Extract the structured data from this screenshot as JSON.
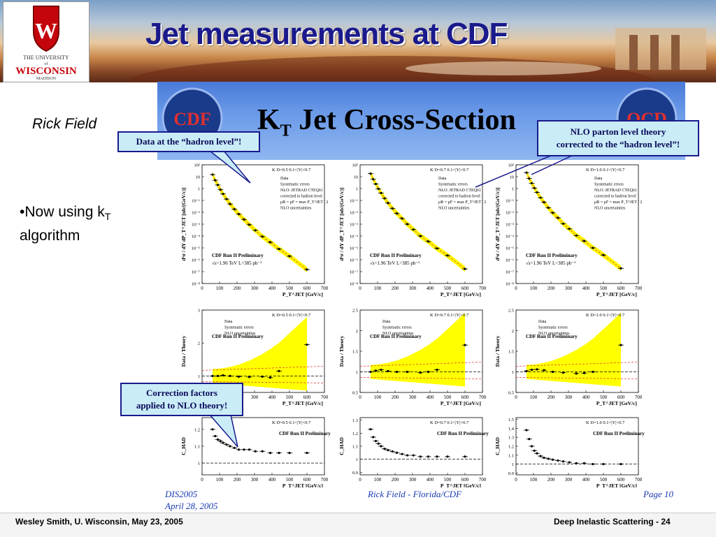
{
  "header": {
    "title": "Jet measurements at CDF",
    "logo_line1": "THE UNIVERSITY",
    "logo_line2": "of",
    "logo_line3": "WISCONSIN",
    "logo_line4": "MADISON"
  },
  "sidebar": {
    "author": "Rick Field",
    "bullet_line1": "•Now using k",
    "bullet_sub": "T",
    "bullet_line2": "algorithm"
  },
  "banner": {
    "title_prefix": "K",
    "title_sub": "T",
    "title_rest": " Jet Cross-Section",
    "logo_left": "CDF",
    "logo_right": "QCD"
  },
  "callouts": {
    "hadron": "Data at the “hadron level”!",
    "nlo_line1": "NLO parton level theory",
    "nlo_line2": "corrected to the “hadron level”!",
    "corr_line1": "Correction factors",
    "corr_line2": "applied to NLO theory!"
  },
  "footer": {
    "dis": "DIS2005",
    "date": "April 28, 2005",
    "center": "Rick Field - Florida/CDF",
    "page": "Page 10",
    "bottom_left": "Wesley Smith, U. Wisconsin, May 23, 2005",
    "bottom_right": "Deep Inelastic Scattering  -  24"
  },
  "colors": {
    "title_blue": "#1a1a8c",
    "callout_bg": "#c9ecf6",
    "syst_band": "#ffff00",
    "nlo_red": "#e03030"
  },
  "chart_data": [
    {
      "type": "scatter",
      "title": "K  D=0.5  0.1<|Y|<0.7",
      "legend": [
        "Data",
        "Systematic errors",
        "NLO: JETRAD CTEQ61",
        "corrected to hadron level",
        "μR = μF = max P_T^JET / 2",
        "NLO uncertainties"
      ],
      "annotations": [
        "CDF Run II Preliminary",
        "√s=1.96 TeV  L=385 pb⁻¹"
      ],
      "xlabel": "P_T^JET [GeV/c]",
      "ylabel": "d²σ / dY dP_T^JET [nb/(GeV/c)]",
      "x_ticks": [
        "0",
        "100",
        "200",
        "300",
        "400",
        "500",
        "600",
        "700"
      ],
      "y_ticks": [
        "10⁻⁸",
        "10⁻⁷",
        "10⁻⁶",
        "10⁻⁵",
        "10⁻⁴",
        "10⁻³",
        "10⁻²",
        "10⁻¹",
        "1",
        "10",
        "10²"
      ],
      "xlim": [
        0,
        700
      ],
      "ylim_log10": [
        -8,
        2
      ],
      "scale": "log",
      "x": [
        60,
        75,
        90,
        105,
        120,
        140,
        160,
        185,
        210,
        240,
        270,
        305,
        345,
        390,
        440,
        500,
        600
      ],
      "y": [
        15,
        5,
        2,
        0.8,
        0.35,
        0.13,
        0.05,
        0.018,
        0.007,
        0.0025,
        0.0009,
        0.0003,
        9e-05,
        3e-05,
        8e-06,
        2e-06,
        1.5e-07
      ]
    },
    {
      "type": "scatter",
      "title": "K  D=0.7  0.1<|Y|<0.7",
      "legend": [
        "Data",
        "Systematic errors",
        "NLO: JETRAD CTEQ61",
        "corrected to hadron level",
        "μR = μF = max P_T^JET / 2",
        "NLO uncertainties"
      ],
      "annotations": [
        "CDF Run II Preliminary",
        "√s=1.96 TeV  L=385 pb⁻¹"
      ],
      "xlabel": "P_T^JET [GeV/c]",
      "ylabel": "d²σ / dY dP_T^JET [nb/(GeV/c)]",
      "x_ticks": [
        "0",
        "100",
        "200",
        "300",
        "400",
        "500",
        "600",
        "700"
      ],
      "y_ticks": [
        "10⁻⁸",
        "10⁻⁷",
        "10⁻⁶",
        "10⁻⁵",
        "10⁻⁴",
        "10⁻³",
        "10⁻²",
        "10⁻¹",
        "1",
        "10",
        "10²"
      ],
      "xlim": [
        0,
        700
      ],
      "ylim_log10": [
        -8,
        2
      ],
      "scale": "log",
      "x": [
        60,
        75,
        90,
        105,
        120,
        140,
        160,
        185,
        210,
        240,
        270,
        305,
        345,
        390,
        440,
        500,
        600
      ],
      "y": [
        18,
        6,
        2.4,
        0.95,
        0.42,
        0.15,
        0.06,
        0.021,
        0.008,
        0.003,
        0.001,
        0.00035,
        0.0001,
        3.5e-05,
        9e-06,
        2.3e-06,
        1.7e-07
      ]
    },
    {
      "type": "scatter",
      "title": "K  D=1.0  0.1<|Y|<0.7",
      "legend": [
        "Data",
        "Systematic errors",
        "NLO: JETRAD CTEQ61",
        "corrected to hadron level",
        "μR = μF = max P_T^JET / 2",
        "NLO uncertainties"
      ],
      "annotations": [
        "CDF Run II Preliminary",
        "√s=1.96 TeV  L=385 pb⁻¹"
      ],
      "xlabel": "P_T^JET [GeV/c]",
      "ylabel": "d²σ / dY dP_T^JET [nb/(GeV/c)]",
      "x_ticks": [
        "0",
        "100",
        "200",
        "300",
        "400",
        "500",
        "600",
        "700"
      ],
      "y_ticks": [
        "10⁻⁸",
        "10⁻⁷",
        "10⁻⁶",
        "10⁻⁵",
        "10⁻⁴",
        "10⁻³",
        "10⁻²",
        "10⁻¹",
        "1",
        "10",
        "10²"
      ],
      "xlim": [
        0,
        700
      ],
      "ylim_log10": [
        -8,
        2
      ],
      "scale": "log",
      "x": [
        60,
        75,
        90,
        105,
        120,
        140,
        160,
        185,
        210,
        240,
        270,
        305,
        345,
        390,
        440,
        500,
        600
      ],
      "y": [
        22,
        7,
        2.8,
        1.1,
        0.48,
        0.17,
        0.07,
        0.024,
        0.009,
        0.0034,
        0.0011,
        0.0004,
        0.00011,
        3.8e-05,
        1e-05,
        2.5e-06,
        1.9e-07
      ]
    },
    {
      "type": "scatter",
      "title": "K  D=0.5  0.1<|Y|<0.7",
      "legend": [
        "Data",
        "Systematic errors",
        "NLO uncertainties"
      ],
      "annotations": [
        "CDF Run II Preliminary"
      ],
      "xlabel": "P_T^JET [GeV/c]",
      "ylabel": "Data / Theory",
      "x_ticks": [
        "0",
        "100",
        "200",
        "300",
        "400",
        "500",
        "600",
        "700"
      ],
      "y_ticks": [
        "1",
        "2",
        "3"
      ],
      "xlim": [
        0,
        700
      ],
      "ylim": [
        0.5,
        3
      ],
      "x": [
        60,
        90,
        120,
        160,
        210,
        270,
        345,
        390,
        440,
        600
      ],
      "y": [
        1.0,
        1.0,
        1.02,
        1.0,
        0.98,
        0.97,
        0.98,
        0.95,
        1.15,
        1.95
      ]
    },
    {
      "type": "scatter",
      "title": "K  D=0.7  0.1<|Y|<0.7",
      "legend": [
        "Data",
        "Systematic errors",
        "NLO uncertainties"
      ],
      "annotations": [
        "CDF Run II Preliminary"
      ],
      "xlabel": "P_T^JET [GeV/c]",
      "ylabel": "Data / Theory",
      "x_ticks": [
        "0",
        "100",
        "200",
        "300",
        "400",
        "500",
        "600",
        "700"
      ],
      "y_ticks": [
        "0.5",
        "1",
        "1.5",
        "2",
        "2.5"
      ],
      "xlim": [
        0,
        700
      ],
      "ylim": [
        0.5,
        2.5
      ],
      "x": [
        60,
        90,
        120,
        160,
        210,
        270,
        345,
        390,
        440,
        600
      ],
      "y": [
        1.0,
        1.03,
        1.05,
        1.02,
        1.0,
        1.0,
        0.98,
        1.0,
        1.05,
        1.65
      ]
    },
    {
      "type": "scatter",
      "title": "K  D=1.0  0.1<|Y|<0.7",
      "legend": [
        "Data",
        "Systematic errors",
        "NLO uncertainties"
      ],
      "annotations": [
        "CDF Run II Preliminary"
      ],
      "xlabel": "P_T^JET [GeV/c]",
      "ylabel": "Data / Theory",
      "x_ticks": [
        "0",
        "100",
        "200",
        "300",
        "400",
        "500",
        "600",
        "700"
      ],
      "y_ticks": [
        "0.5",
        "1",
        "1.5",
        "2",
        "2.5"
      ],
      "xlim": [
        0,
        700
      ],
      "ylim": [
        0.5,
        2.5
      ],
      "x": [
        60,
        90,
        120,
        160,
        210,
        270,
        345,
        390,
        440,
        600
      ],
      "y": [
        1.02,
        1.05,
        1.06,
        1.04,
        1.0,
        0.98,
        0.96,
        0.97,
        1.0,
        1.65
      ]
    },
    {
      "type": "scatter",
      "title": "K  D=0.5  0.1<|Y|<0.7",
      "annotations": [
        "CDF Run II Preliminary"
      ],
      "xlabel": "P_T^JET [GeV/c]",
      "ylabel": "C_HAD",
      "x_ticks": [
        "0",
        "100",
        "200",
        "300",
        "400",
        "500",
        "600",
        "700"
      ],
      "y_ticks": [
        "1",
        "1.1",
        "1.2"
      ],
      "xlim": [
        0,
        700
      ],
      "ylim": [
        0.93,
        1.27
      ],
      "x": [
        60,
        75,
        90,
        105,
        120,
        140,
        160,
        185,
        210,
        240,
        270,
        305,
        345,
        390,
        440,
        500,
        600
      ],
      "y": [
        1.2,
        1.16,
        1.14,
        1.13,
        1.12,
        1.11,
        1.1,
        1.09,
        1.08,
        1.08,
        1.08,
        1.07,
        1.07,
        1.06,
        1.06,
        1.06,
        1.06
      ]
    },
    {
      "type": "scatter",
      "title": "K  D=0.7  0.1<|Y|<0.7",
      "annotations": [
        "CDF Run II Preliminary"
      ],
      "xlabel": "P_T^JET [GeV/c]",
      "ylabel": "C_HAD",
      "x_ticks": [
        "0",
        "100",
        "200",
        "300",
        "400",
        "500",
        "600",
        "700"
      ],
      "y_ticks": [
        "0.9",
        "1",
        "1.1",
        "1.2",
        "1.3"
      ],
      "xlim": [
        0,
        700
      ],
      "ylim": [
        0.88,
        1.32
      ],
      "x": [
        60,
        75,
        90,
        105,
        120,
        140,
        160,
        185,
        210,
        240,
        270,
        305,
        345,
        390,
        440,
        500,
        600
      ],
      "y": [
        1.23,
        1.17,
        1.14,
        1.12,
        1.1,
        1.08,
        1.07,
        1.06,
        1.05,
        1.04,
        1.03,
        1.03,
        1.02,
        1.02,
        1.02,
        1.02,
        1.02
      ]
    },
    {
      "type": "scatter",
      "title": "K  D=1.0  0.1<|Y|<0.7",
      "annotations": [
        "CDF Run II Preliminary"
      ],
      "xlabel": "P_T^JET [GeV/c]",
      "ylabel": "C_HAD",
      "x_ticks": [
        "0",
        "100",
        "200",
        "300",
        "400",
        "500",
        "600",
        "700"
      ],
      "y_ticks": [
        "0.9",
        "1",
        "1.1",
        "1.2",
        "1.3",
        "1.4",
        "1.5"
      ],
      "xlim": [
        0,
        700
      ],
      "ylim": [
        0.88,
        1.52
      ],
      "x": [
        60,
        75,
        90,
        105,
        120,
        140,
        160,
        185,
        210,
        240,
        270,
        305,
        345,
        390,
        440,
        500,
        600
      ],
      "y": [
        1.38,
        1.28,
        1.2,
        1.15,
        1.12,
        1.09,
        1.07,
        1.06,
        1.05,
        1.04,
        1.03,
        1.02,
        1.01,
        1.01,
        1.0,
        1.0,
        1.0
      ]
    }
  ]
}
